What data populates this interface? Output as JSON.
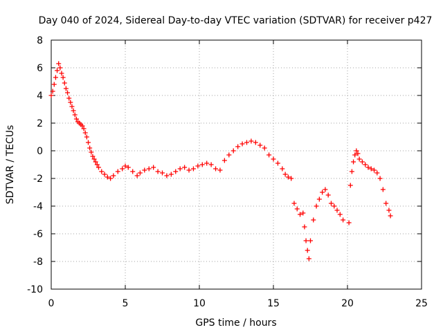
{
  "chart_data": {
    "type": "scatter",
    "title": "Day 040 of 2024, Sidereal Day-to-day VTEC variation (SDTVAR) for receiver p427",
    "xlabel": "GPS time / hours",
    "ylabel": "SDTVAR / TECUs",
    "xlim": [
      0,
      25
    ],
    "ylim": [
      -10,
      8
    ],
    "xticks": [
      "0",
      "5",
      "10",
      "15",
      "20",
      "25"
    ],
    "yticks": [
      "8",
      "6",
      "4",
      "2",
      "0",
      "-2",
      "-4",
      "-6",
      "-8",
      "-10"
    ],
    "grid": true,
    "marker": "plus",
    "colors": {
      "series": "#ff0000",
      "grid": "#a0a0a0",
      "axis": "#000000"
    },
    "series": [
      {
        "name": "SDTVAR",
        "x": [
          0.0,
          0.1,
          0.2,
          0.3,
          0.4,
          0.5,
          0.6,
          0.7,
          0.8,
          0.9,
          1.0,
          1.1,
          1.2,
          1.3,
          1.4,
          1.5,
          1.6,
          1.7,
          1.8,
          1.9,
          2.0,
          2.1,
          2.2,
          2.3,
          2.4,
          2.5,
          2.6,
          2.7,
          2.8,
          2.9,
          3.0,
          3.1,
          3.2,
          3.4,
          3.6,
          3.8,
          4.0,
          4.2,
          4.5,
          4.8,
          5.0,
          5.2,
          5.5,
          5.8,
          6.0,
          6.3,
          6.6,
          6.9,
          7.2,
          7.5,
          7.8,
          8.1,
          8.4,
          8.7,
          9.0,
          9.3,
          9.6,
          9.9,
          10.2,
          10.5,
          10.8,
          11.1,
          11.4,
          11.7,
          12.0,
          12.3,
          12.6,
          12.9,
          13.2,
          13.5,
          13.8,
          14.1,
          14.4,
          14.7,
          15.0,
          15.3,
          15.6,
          15.8,
          16.0,
          16.2,
          16.4,
          16.6,
          16.8,
          17.0,
          17.1,
          17.2,
          17.3,
          17.4,
          17.5,
          17.7,
          17.9,
          18.1,
          18.3,
          18.5,
          18.7,
          18.9,
          19.1,
          19.3,
          19.5,
          19.7,
          20.1,
          20.2,
          20.3,
          20.4,
          20.5,
          20.6,
          20.7,
          20.8,
          21.0,
          21.2,
          21.4,
          21.6,
          21.8,
          22.0,
          22.2,
          22.4,
          22.6,
          22.8,
          22.9
        ],
        "values": [
          4.0,
          4.3,
          4.8,
          5.3,
          5.8,
          6.3,
          6.0,
          5.6,
          5.3,
          4.9,
          4.5,
          4.2,
          3.8,
          3.5,
          3.2,
          2.9,
          2.6,
          2.3,
          2.1,
          2.0,
          1.9,
          1.8,
          1.6,
          1.3,
          1.0,
          0.6,
          0.2,
          -0.1,
          -0.4,
          -0.6,
          -0.8,
          -1.0,
          -1.2,
          -1.5,
          -1.7,
          -1.9,
          -2.0,
          -1.8,
          -1.5,
          -1.3,
          -1.1,
          -1.2,
          -1.5,
          -1.8,
          -1.6,
          -1.4,
          -1.3,
          -1.2,
          -1.5,
          -1.6,
          -1.8,
          -1.7,
          -1.5,
          -1.3,
          -1.2,
          -1.4,
          -1.3,
          -1.1,
          -1.0,
          -0.9,
          -1.0,
          -1.3,
          -1.4,
          -0.7,
          -0.3,
          0.0,
          0.3,
          0.5,
          0.6,
          0.7,
          0.6,
          0.4,
          0.2,
          -0.3,
          -0.6,
          -0.9,
          -1.3,
          -1.7,
          -1.9,
          -2.0,
          -3.8,
          -4.2,
          -4.6,
          -4.5,
          -5.5,
          -6.5,
          -7.2,
          -7.8,
          -6.5,
          -5.0,
          -4.0,
          -3.5,
          -3.0,
          -2.8,
          -3.2,
          -3.8,
          -4.0,
          -4.3,
          -4.6,
          -5.0,
          -5.2,
          -2.5,
          -1.5,
          -0.8,
          -0.3,
          0.0,
          -0.2,
          -0.6,
          -0.8,
          -1.0,
          -1.2,
          -1.3,
          -1.4,
          -1.6,
          -2.0,
          -2.8,
          -3.8,
          -4.3,
          -4.7
        ]
      }
    ]
  }
}
